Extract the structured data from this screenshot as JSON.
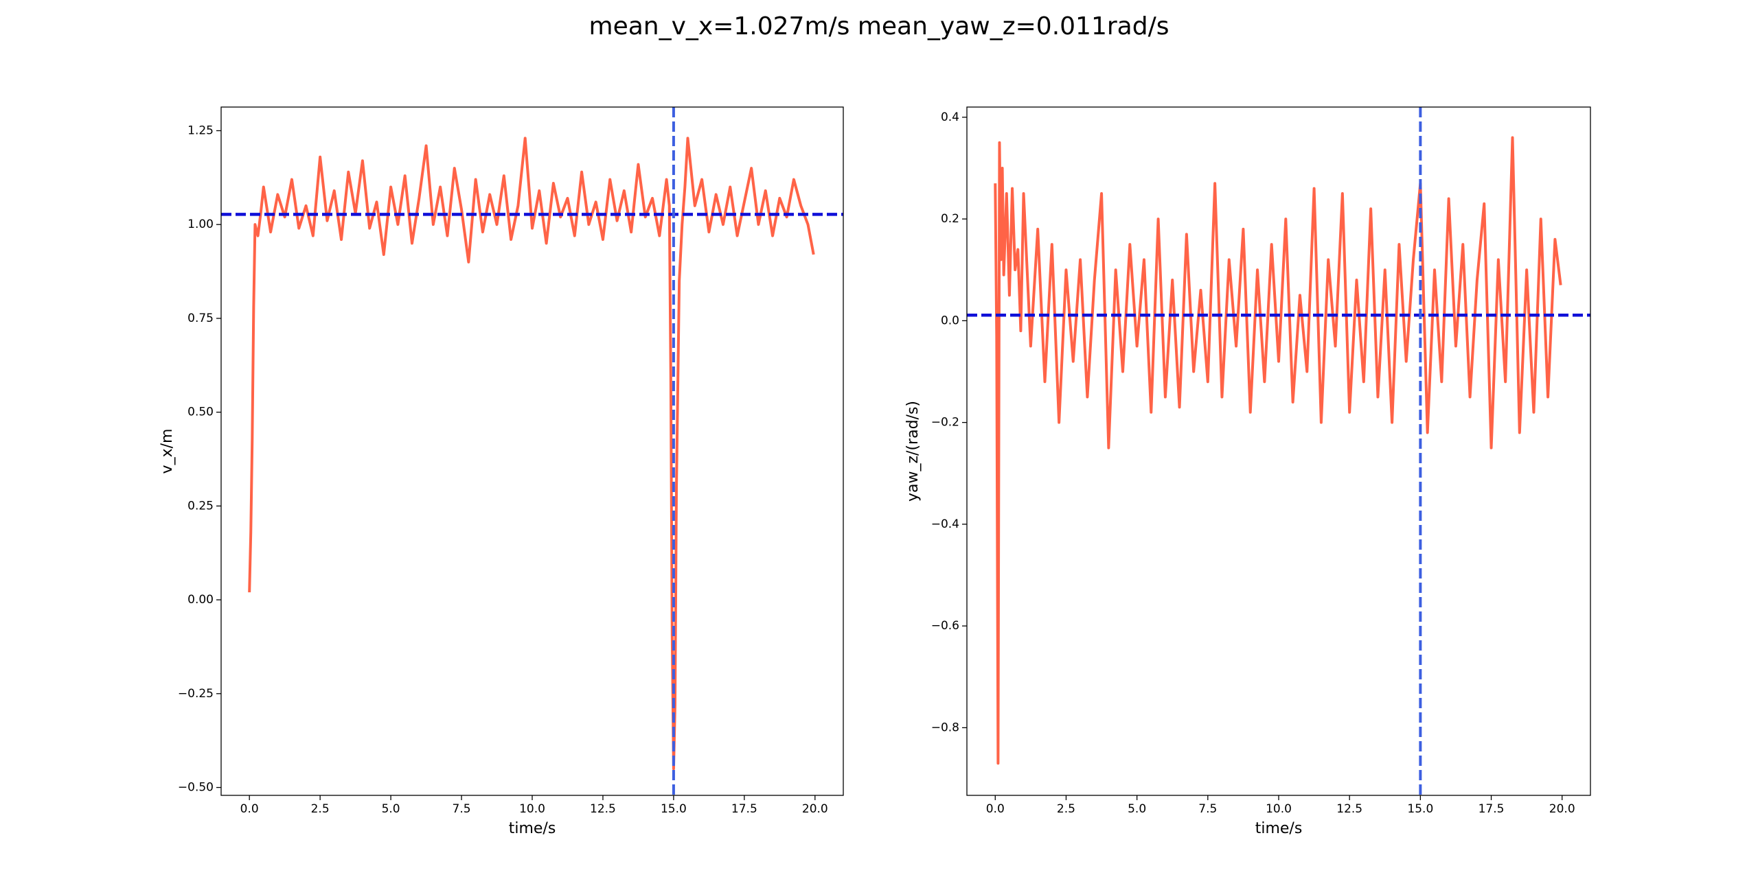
{
  "title": "mean_v_x=1.027m/s  mean_yaw_z=0.011rad/s",
  "chart_data": [
    {
      "type": "line",
      "xlabel": "time/s",
      "ylabel": "v_x/m",
      "x": [
        0,
        0.05,
        0.1,
        0.15,
        0.2,
        0.3,
        0.4,
        0.5,
        0.75,
        1.0,
        1.25,
        1.5,
        1.75,
        2.0,
        2.25,
        2.5,
        2.75,
        3.0,
        3.25,
        3.5,
        3.75,
        4.0,
        4.25,
        4.5,
        4.75,
        5.0,
        5.25,
        5.5,
        5.75,
        6.0,
        6.25,
        6.5,
        6.75,
        7.0,
        7.25,
        7.5,
        7.75,
        8.0,
        8.25,
        8.5,
        8.75,
        9.0,
        9.25,
        9.5,
        9.75,
        10.0,
        10.25,
        10.5,
        10.75,
        11.0,
        11.25,
        11.5,
        11.75,
        12.0,
        12.25,
        12.5,
        12.75,
        13.0,
        13.25,
        13.5,
        13.75,
        14.0,
        14.25,
        14.5,
        14.75,
        14.85,
        14.9,
        14.95,
        15.0,
        15.05,
        15.1,
        15.2,
        15.3,
        15.4,
        15.5,
        15.75,
        16.0,
        16.25,
        16.5,
        16.75,
        17.0,
        17.25,
        17.5,
        17.75,
        18.0,
        18.25,
        18.5,
        18.75,
        19.0,
        19.25,
        19.5,
        19.75,
        19.95
      ],
      "series": [
        {
          "color": "#ff6347",
          "values": [
            0.02,
            0.18,
            0.43,
            0.78,
            1.0,
            0.97,
            1.03,
            1.1,
            0.98,
            1.08,
            1.02,
            1.12,
            0.99,
            1.05,
            0.97,
            1.18,
            1.01,
            1.09,
            0.96,
            1.14,
            1.03,
            1.17,
            0.99,
            1.06,
            0.92,
            1.1,
            1.0,
            1.13,
            0.95,
            1.07,
            1.21,
            1.0,
            1.1,
            0.97,
            1.15,
            1.04,
            0.9,
            1.12,
            0.98,
            1.08,
            1.0,
            1.13,
            0.96,
            1.05,
            1.23,
            0.99,
            1.09,
            0.95,
            1.11,
            1.02,
            1.07,
            0.97,
            1.14,
            1.0,
            1.06,
            0.96,
            1.12,
            1.01,
            1.09,
            0.98,
            1.16,
            1.02,
            1.07,
            0.97,
            1.12,
            1.05,
            0.6,
            -0.1,
            -0.45,
            -0.28,
            0.3,
            0.85,
            1.0,
            1.1,
            1.23,
            1.05,
            1.12,
            0.98,
            1.08,
            1.0,
            1.1,
            0.97,
            1.06,
            1.15,
            1.0,
            1.09,
            0.97,
            1.07,
            1.02,
            1.12,
            1.05,
            1.0,
            0.92
          ]
        }
      ],
      "xlim": [
        -1.0,
        21.0
      ],
      "ylim": [
        -0.521,
        1.313
      ],
      "xticks": [
        {
          "value": 0,
          "label": "0.0"
        },
        2.5,
        {
          "value": 5,
          "label": "5.0"
        },
        7.5,
        {
          "value": 10,
          "label": "10.0"
        },
        12.5,
        {
          "value": 15,
          "label": "15.0"
        },
        17.5,
        {
          "value": 20,
          "label": "20.0"
        }
      ],
      "yticks": [
        {
          "value": -0.5,
          "label": "−0.50"
        },
        {
          "value": -0.25,
          "label": "−0.25"
        },
        {
          "value": 0,
          "label": "0.00"
        },
        0.25,
        {
          "value": 0.5,
          "label": "0.50"
        },
        0.75,
        {
          "value": 1,
          "label": "1.00"
        },
        1.25
      ],
      "hlines": [
        {
          "value": 1.027,
          "color": "#1010d8"
        }
      ],
      "vlines": [
        {
          "value": 15,
          "color": "#3d5fe0"
        }
      ]
    },
    {
      "type": "line",
      "xlabel": "time/s",
      "ylabel": "yaw_z/(rad/s)",
      "x": [
        0,
        0.05,
        0.1,
        0.15,
        0.2,
        0.25,
        0.3,
        0.4,
        0.5,
        0.6,
        0.7,
        0.8,
        0.9,
        1.0,
        1.25,
        1.5,
        1.75,
        2.0,
        2.25,
        2.5,
        2.75,
        3.0,
        3.25,
        3.5,
        3.75,
        4.0,
        4.25,
        4.5,
        4.75,
        5.0,
        5.25,
        5.5,
        5.75,
        6.0,
        6.25,
        6.5,
        6.75,
        7.0,
        7.25,
        7.5,
        7.75,
        8.0,
        8.25,
        8.5,
        8.75,
        9.0,
        9.25,
        9.5,
        9.75,
        10.0,
        10.25,
        10.5,
        10.75,
        11.0,
        11.25,
        11.5,
        11.75,
        12.0,
        12.25,
        12.5,
        12.75,
        13.0,
        13.25,
        13.5,
        13.75,
        14.0,
        14.25,
        14.5,
        14.75,
        15.0,
        15.25,
        15.5,
        15.75,
        16.0,
        16.25,
        16.5,
        16.75,
        17.0,
        17.25,
        17.5,
        17.75,
        18.0,
        18.25,
        18.5,
        18.75,
        19.0,
        19.25,
        19.5,
        19.75,
        19.95
      ],
      "series": [
        {
          "color": "#ff6347",
          "values": [
            0.27,
            -0.03,
            -0.87,
            0.35,
            0.12,
            0.3,
            0.09,
            0.25,
            0.05,
            0.26,
            0.1,
            0.14,
            -0.02,
            0.25,
            -0.05,
            0.18,
            -0.12,
            0.15,
            -0.2,
            0.1,
            -0.08,
            0.12,
            -0.15,
            0.08,
            0.25,
            -0.25,
            0.1,
            -0.1,
            0.15,
            -0.05,
            0.12,
            -0.18,
            0.2,
            -0.15,
            0.08,
            -0.17,
            0.17,
            -0.1,
            0.06,
            -0.12,
            0.27,
            -0.15,
            0.12,
            -0.05,
            0.18,
            -0.18,
            0.1,
            -0.12,
            0.15,
            -0.08,
            0.2,
            -0.16,
            0.05,
            -0.1,
            0.26,
            -0.2,
            0.12,
            -0.05,
            0.25,
            -0.18,
            0.08,
            -0.12,
            0.22,
            -0.15,
            0.1,
            -0.2,
            0.15,
            -0.08,
            0.12,
            0.27,
            -0.22,
            0.1,
            -0.12,
            0.24,
            -0.05,
            0.15,
            -0.15,
            0.08,
            0.23,
            -0.25,
            0.12,
            -0.12,
            0.36,
            -0.22,
            0.1,
            -0.18,
            0.2,
            -0.15,
            0.16,
            0.07
          ]
        }
      ],
      "xlim": [
        -1.0,
        21.0
      ],
      "ylim": [
        -0.933,
        0.42
      ],
      "xticks": [
        {
          "value": 0,
          "label": "0.0"
        },
        2.5,
        {
          "value": 5,
          "label": "5.0"
        },
        7.5,
        {
          "value": 10,
          "label": "10.0"
        },
        12.5,
        {
          "value": 15,
          "label": "15.0"
        },
        17.5,
        {
          "value": 20,
          "label": "20.0"
        }
      ],
      "yticks": [
        {
          "value": -0.8,
          "label": "−0.8"
        },
        {
          "value": -0.6,
          "label": "−0.6"
        },
        {
          "value": -0.4,
          "label": "−0.4"
        },
        {
          "value": -0.2,
          "label": "−0.2"
        },
        {
          "value": 0,
          "label": "0.0"
        },
        0.2,
        0.4
      ],
      "hlines": [
        {
          "value": 0.011,
          "color": "#1010d8"
        }
      ],
      "vlines": [
        {
          "value": 15,
          "color": "#3d5fe0"
        }
      ]
    }
  ]
}
